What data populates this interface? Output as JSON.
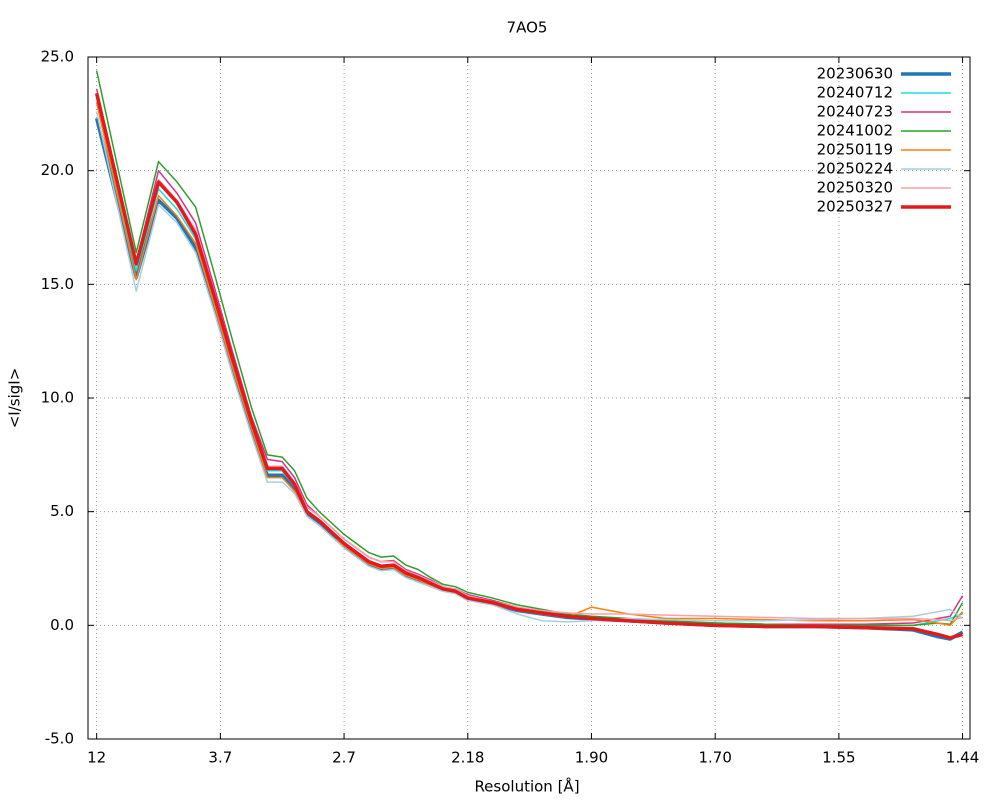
{
  "chart_data": {
    "type": "line",
    "title": "7AO5",
    "x_label": "Resolution [Å]",
    "y_label": "<I/sigI>",
    "x": [
      0,
      0.32,
      0.5,
      0.65,
      0.8,
      0.95,
      1.1,
      1.25,
      1.38,
      1.5,
      1.6,
      1.7,
      1.8,
      1.9,
      2.0,
      2.1,
      2.2,
      2.3,
      2.4,
      2.5,
      2.6,
      2.7,
      2.8,
      2.9,
      3.0,
      3.2,
      3.4,
      3.6,
      3.8,
      4.0,
      4.3,
      4.6,
      5.0,
      5.4,
      5.8,
      6.2,
      6.6,
      6.8,
      6.9,
      7.0
    ],
    "xlim": [
      -0.07,
      7.06
    ],
    "xticks": [
      {
        "value": 0,
        "label": "12"
      },
      {
        "value": 1,
        "label": "3.7"
      },
      {
        "value": 2,
        "label": "2.7"
      },
      {
        "value": 3,
        "label": "2.18"
      },
      {
        "value": 4,
        "label": "1.90"
      },
      {
        "value": 5,
        "label": "1.70"
      },
      {
        "value": 6,
        "label": "1.55"
      },
      {
        "value": 7,
        "label": "1.44"
      }
    ],
    "ylim": [
      -5,
      25
    ],
    "yticks": [
      {
        "value": -5,
        "label": "-5.0"
      },
      {
        "value": 0,
        "label": "0.0"
      },
      {
        "value": 5,
        "label": "5.0"
      },
      {
        "value": 10,
        "label": "10.0"
      },
      {
        "value": 15,
        "label": "15.0"
      },
      {
        "value": 20,
        "label": "20.0"
      },
      {
        "value": 25,
        "label": "25.0"
      }
    ],
    "grid": true,
    "legend": "top-right",
    "series": [
      {
        "name": "20230630",
        "color": "#1f77b4",
        "line_width": 3.5,
        "values": [
          22.3,
          15.3,
          18.7,
          17.9,
          16.6,
          14.0,
          11.2,
          8.6,
          6.6,
          6.6,
          6.0,
          4.9,
          4.5,
          4.0,
          3.5,
          3.1,
          2.7,
          2.5,
          2.55,
          2.2,
          2.0,
          1.75,
          1.55,
          1.45,
          1.15,
          0.95,
          0.65,
          0.5,
          0.35,
          0.28,
          0.2,
          0.1,
          0.0,
          -0.05,
          -0.05,
          -0.1,
          -0.2,
          -0.5,
          -0.6,
          -0.3
        ]
      },
      {
        "name": "20240712",
        "color": "#17e0e0",
        "line_width": 1.5,
        "values": [
          23.0,
          15.6,
          19.2,
          18.3,
          17.0,
          14.3,
          11.5,
          8.9,
          6.8,
          6.8,
          6.1,
          5.0,
          4.6,
          4.1,
          3.6,
          3.2,
          2.8,
          2.6,
          2.65,
          2.3,
          2.1,
          1.85,
          1.6,
          1.5,
          1.2,
          1.0,
          0.7,
          0.55,
          0.4,
          0.3,
          0.2,
          0.1,
          0.05,
          0.0,
          0.0,
          0.0,
          0.0,
          0.2,
          0.3,
          0.5
        ]
      },
      {
        "name": "20240723",
        "color": "#d62f8c",
        "line_width": 1.5,
        "values": [
          23.6,
          16.0,
          20.0,
          19.0,
          17.7,
          14.9,
          12.0,
          9.2,
          7.3,
          7.2,
          6.5,
          5.3,
          4.8,
          4.3,
          3.8,
          3.4,
          3.0,
          2.8,
          2.85,
          2.45,
          2.25,
          2.0,
          1.7,
          1.6,
          1.35,
          1.1,
          0.8,
          0.6,
          0.45,
          0.35,
          0.25,
          0.15,
          0.1,
          0.05,
          0.05,
          0.05,
          0.1,
          0.3,
          0.4,
          1.3
        ]
      },
      {
        "name": "20241002",
        "color": "#2ca02c",
        "line_width": 1.5,
        "values": [
          24.4,
          16.4,
          20.4,
          19.5,
          18.4,
          15.5,
          12.5,
          9.6,
          7.5,
          7.4,
          6.8,
          5.6,
          5.0,
          4.5,
          4.0,
          3.6,
          3.2,
          3.0,
          3.05,
          2.65,
          2.45,
          2.1,
          1.8,
          1.7,
          1.45,
          1.2,
          0.9,
          0.7,
          0.5,
          0.4,
          0.3,
          0.2,
          0.1,
          0.05,
          0.0,
          0.0,
          0.0,
          0.1,
          0.05,
          1.0
        ]
      },
      {
        "name": "20250119",
        "color": "#ff7f0e",
        "line_width": 1.5,
        "values": [
          23.0,
          15.2,
          18.9,
          18.0,
          16.8,
          14.1,
          11.3,
          8.7,
          6.5,
          6.5,
          5.9,
          4.8,
          4.4,
          3.9,
          3.5,
          3.1,
          2.7,
          2.5,
          2.55,
          2.2,
          2.0,
          1.75,
          1.55,
          1.45,
          1.15,
          0.95,
          0.65,
          0.5,
          0.35,
          0.8,
          0.5,
          0.3,
          0.3,
          0.25,
          0.2,
          0.2,
          0.25,
          0.1,
          0.0,
          0.6
        ]
      },
      {
        "name": "20250224",
        "color": "#a6cee3",
        "line_width": 1.5,
        "values": [
          22.6,
          14.7,
          18.5,
          17.7,
          16.4,
          13.8,
          11.0,
          8.4,
          6.3,
          6.3,
          5.8,
          4.8,
          4.4,
          3.9,
          3.4,
          3.0,
          2.6,
          2.4,
          2.45,
          2.1,
          1.9,
          1.7,
          1.5,
          1.4,
          1.1,
          0.9,
          0.5,
          0.2,
          0.15,
          0.2,
          0.3,
          0.25,
          0.2,
          0.2,
          0.25,
          0.3,
          0.4,
          0.6,
          0.7,
          0.3
        ]
      },
      {
        "name": "20250320",
        "color": "#f4a3a8",
        "line_width": 1.5,
        "values": [
          23.2,
          15.8,
          19.6,
          18.7,
          17.4,
          14.7,
          11.8,
          9.1,
          7.0,
          7.0,
          6.3,
          5.2,
          4.8,
          4.3,
          3.8,
          3.4,
          3.0,
          2.8,
          2.8,
          2.4,
          2.2,
          1.95,
          1.7,
          1.6,
          1.3,
          1.05,
          0.8,
          0.65,
          0.55,
          0.5,
          0.5,
          0.45,
          0.4,
          0.35,
          0.3,
          0.3,
          0.3,
          0.25,
          0.2,
          0.35
        ]
      },
      {
        "name": "20250327",
        "color": "#e31a1c",
        "line_width": 3.5,
        "values": [
          23.4,
          15.9,
          19.5,
          18.6,
          17.2,
          14.5,
          11.7,
          9.0,
          6.9,
          6.9,
          6.2,
          5.0,
          4.6,
          4.1,
          3.6,
          3.2,
          2.8,
          2.6,
          2.65,
          2.3,
          2.1,
          1.85,
          1.6,
          1.5,
          1.2,
          1.0,
          0.7,
          0.55,
          0.4,
          0.3,
          0.2,
          0.1,
          0.0,
          -0.05,
          -0.05,
          -0.1,
          -0.15,
          -0.4,
          -0.55,
          -0.4
        ]
      }
    ]
  }
}
